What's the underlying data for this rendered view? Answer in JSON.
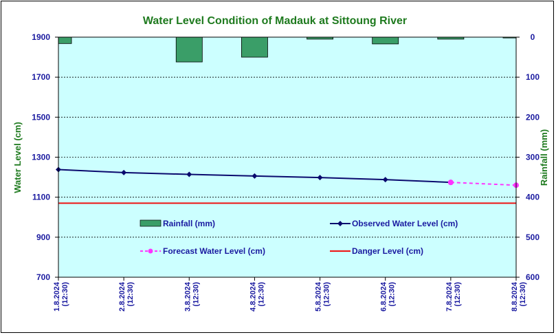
{
  "chart_data": {
    "type": "bar+line",
    "title": "Water Level Condition of Madauk at Sittoung River",
    "ylabel": "Water Level (cm)",
    "y2label": "Rainfall (mm)",
    "ylim": [
      700,
      1900
    ],
    "y_ticks": [
      "700",
      "900",
      "1100",
      "1300",
      "1500",
      "1700",
      "1900"
    ],
    "y2lim": [
      0,
      600
    ],
    "y2_ticks": [
      "0",
      "100",
      "200",
      "300",
      "400",
      "500",
      "600"
    ],
    "y2_inverted": true,
    "categories": [
      [
        "1.8.2024",
        "(12:30)"
      ],
      [
        "2.8.2024",
        "(12:30)"
      ],
      [
        "3.8.2024",
        "(12:30)"
      ],
      [
        "4.8.2024",
        "(12:30)"
      ],
      [
        "5.8.2024",
        "(12:30)"
      ],
      [
        "6.8.2024",
        "(12:30)"
      ],
      [
        "7.8.2024",
        "(12:30)"
      ],
      [
        "8.8.2024",
        "(12:30)"
      ]
    ],
    "series": [
      {
        "name": "Rainfall (mm)",
        "kind": "bar",
        "axis": "y2",
        "color": "#3a9e68",
        "values": [
          16,
          0,
          62,
          50,
          5,
          17,
          5,
          2
        ]
      },
      {
        "name": "Observed Water Level (cm)",
        "kind": "line",
        "axis": "y",
        "color": "#0a0a6e",
        "values": [
          1238,
          1223,
          1214,
          1206,
          1198,
          1188,
          1174,
          null
        ]
      },
      {
        "name": "Forecast Water Level (cm)",
        "kind": "dashed-line",
        "axis": "y",
        "color": "#ff33ff",
        "values": [
          null,
          null,
          null,
          null,
          null,
          null,
          1174,
          1160
        ]
      },
      {
        "name": "Danger Level (cm)",
        "kind": "hline",
        "axis": "y",
        "color": "#ee1111",
        "values": [
          1070,
          1070,
          1070,
          1070,
          1070,
          1070,
          1070,
          1070
        ]
      }
    ],
    "grid": true,
    "plot_background": "#ccffff",
    "legend_position": "inside-lower"
  }
}
